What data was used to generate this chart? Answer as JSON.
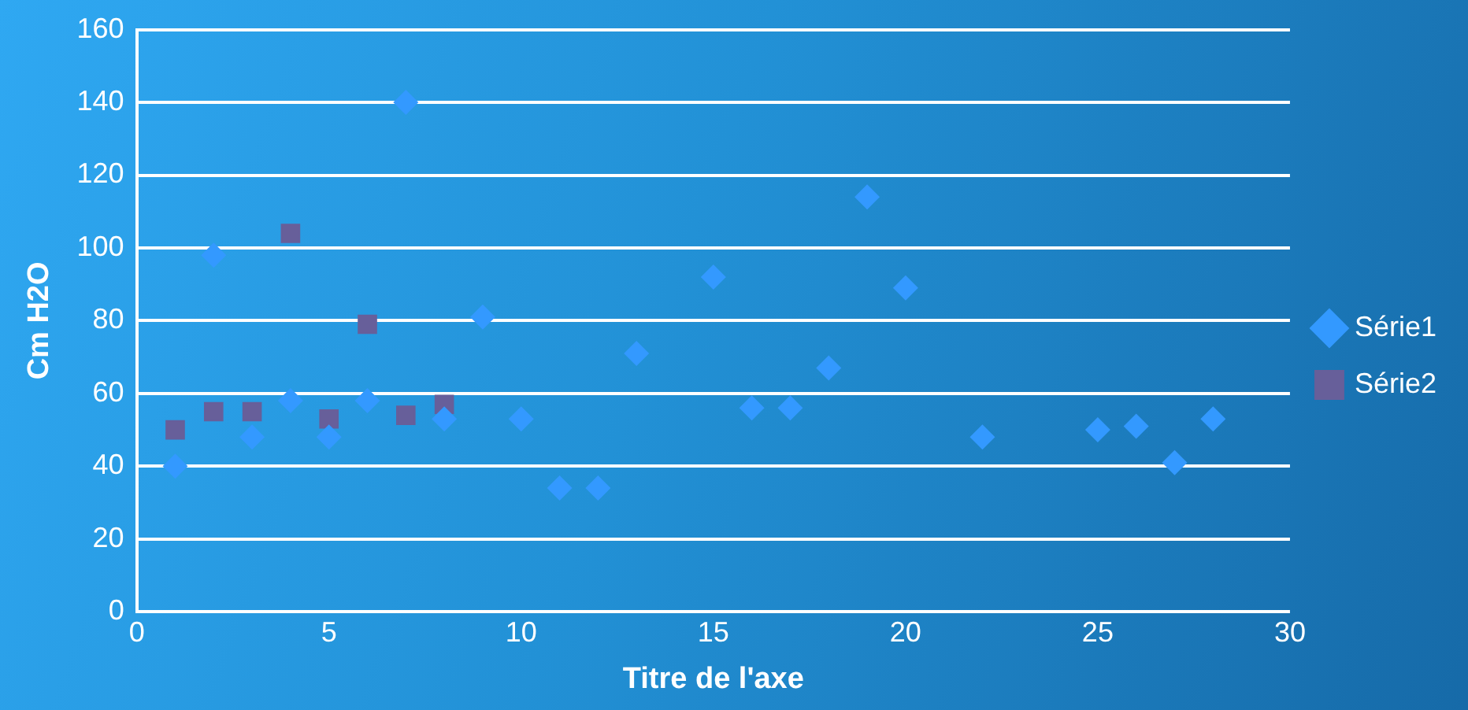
{
  "chart_data": {
    "type": "scatter",
    "xlabel": "Titre de l'axe",
    "ylabel": "Cm H2O",
    "xlim": [
      0,
      30
    ],
    "xticks": [
      0,
      5,
      10,
      15,
      20,
      25,
      30
    ],
    "ylim": [
      0,
      160
    ],
    "yticks": [
      0,
      20,
      40,
      60,
      80,
      100,
      120,
      140,
      160
    ],
    "grid": "y",
    "legend": "right",
    "series": [
      {
        "name": "Série1",
        "color": "#3399ff",
        "marker": "diamond",
        "x": [
          1,
          2,
          3,
          4,
          5,
          6,
          7,
          8,
          9,
          10,
          11,
          12,
          13,
          15,
          16,
          17,
          18,
          19,
          20,
          22,
          25,
          26,
          27,
          28
        ],
        "values": [
          40,
          98,
          48,
          58,
          48,
          58,
          140,
          53,
          81,
          53,
          34,
          34,
          71,
          92,
          56,
          56,
          67,
          114,
          89,
          48,
          50,
          51,
          41,
          53
        ]
      },
      {
        "name": "Série2",
        "color": "#675f9a",
        "marker": "square",
        "x": [
          1,
          2,
          3,
          4,
          5,
          6,
          7,
          8
        ],
        "values": [
          50,
          55,
          55,
          104,
          53,
          79,
          54,
          57
        ]
      }
    ]
  }
}
